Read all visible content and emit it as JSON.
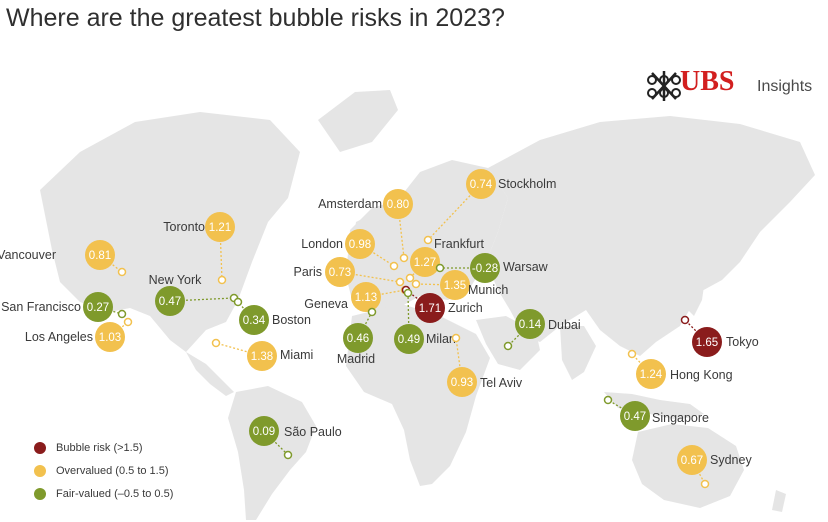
{
  "title": "Where are the greatest bubble risks in 2023?",
  "brand": {
    "name": "UBS",
    "section": "Insights"
  },
  "colors": {
    "bubble": "#8a1c1c",
    "overvalued": "#f2c14e",
    "fair": "#7f9a2c",
    "brand_red": "#d21f1f"
  },
  "legend": [
    {
      "label": "Bubble risk (>1.5)",
      "category": "bubble"
    },
    {
      "label": "Overvalued (0.5 to 1.5)",
      "category": "overvalued"
    },
    {
      "label": "Fair-valued (–0.5 to 0.5)",
      "category": "fair"
    }
  ],
  "cities": [
    {
      "name": "Vancouver",
      "value": "0.81",
      "category": "overvalued"
    },
    {
      "name": "Toronto",
      "value": "1.21",
      "category": "overvalued"
    },
    {
      "name": "New York",
      "value": "0.47",
      "category": "fair"
    },
    {
      "name": "San Francisco",
      "value": "0.27",
      "category": "fair"
    },
    {
      "name": "Los Angeles",
      "value": "1.03",
      "category": "overvalued"
    },
    {
      "name": "Boston",
      "value": "0.34",
      "category": "fair"
    },
    {
      "name": "Miami",
      "value": "1.38",
      "category": "overvalued"
    },
    {
      "name": "São Paulo",
      "value": "0.09",
      "category": "fair"
    },
    {
      "name": "Stockholm",
      "value": "0.74",
      "category": "overvalued"
    },
    {
      "name": "Amsterdam",
      "value": "0.80",
      "category": "overvalued"
    },
    {
      "name": "London",
      "value": "0.98",
      "category": "overvalued"
    },
    {
      "name": "Frankfurt",
      "value": "1.27",
      "category": "overvalued"
    },
    {
      "name": "Paris",
      "value": "0.73",
      "category": "overvalued"
    },
    {
      "name": "Warsaw",
      "value": "-0.28",
      "category": "fair"
    },
    {
      "name": "Munich",
      "value": "1.35",
      "category": "overvalued"
    },
    {
      "name": "Geneva",
      "value": "1.13",
      "category": "overvalued"
    },
    {
      "name": "Zurich",
      "value": "1.71",
      "category": "bubble"
    },
    {
      "name": "Madrid",
      "value": "0.46",
      "category": "fair"
    },
    {
      "name": "Milan",
      "value": "0.49",
      "category": "fair"
    },
    {
      "name": "Dubai",
      "value": "0.14",
      "category": "fair"
    },
    {
      "name": "Tel Aviv",
      "value": "0.93",
      "category": "overvalued"
    },
    {
      "name": "Tokyo",
      "value": "1.65",
      "category": "bubble"
    },
    {
      "name": "Hong Kong",
      "value": "1.24",
      "category": "overvalued"
    },
    {
      "name": "Singapore",
      "value": "0.47",
      "category": "fair"
    },
    {
      "name": "Sydney",
      "value": "0.67",
      "category": "overvalued"
    }
  ]
}
